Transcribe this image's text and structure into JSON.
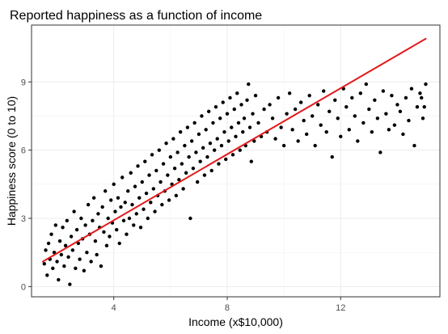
{
  "chart_data": {
    "type": "scatter",
    "title": "Reported happiness as a function of income",
    "xlabel": "Income (x$10,000)",
    "ylabel": "Happiness score (0 to 10)",
    "xlim": [
      1.1,
      15.5
    ],
    "ylim": [
      -0.45,
      11.5
    ],
    "x_ticks": [
      4,
      8,
      12
    ],
    "x_tick_labels": [
      "4",
      "8",
      "12"
    ],
    "y_ticks": [
      0,
      3,
      6,
      9
    ],
    "y_tick_labels": [
      "0",
      "3",
      "6",
      "9"
    ],
    "grid": true,
    "legend": "none",
    "series": [
      {
        "kind": "points",
        "color": "#000000",
        "points": [
          [
            1.55,
            1.0
          ],
          [
            1.6,
            1.6
          ],
          [
            1.65,
            0.5
          ],
          [
            1.7,
            1.9
          ],
          [
            1.75,
            1.2
          ],
          [
            1.8,
            2.3
          ],
          [
            1.85,
            0.8
          ],
          [
            1.9,
            1.5
          ],
          [
            1.95,
            2.7
          ],
          [
            2.0,
            1.1
          ],
          [
            2.05,
            0.3
          ],
          [
            2.1,
            2.0
          ],
          [
            2.15,
            1.4
          ],
          [
            2.2,
            2.6
          ],
          [
            2.25,
            0.9
          ],
          [
            2.3,
            1.8
          ],
          [
            2.35,
            2.9
          ],
          [
            2.4,
            1.3
          ],
          [
            2.45,
            0.1
          ],
          [
            2.5,
            2.2
          ],
          [
            2.55,
            1.6
          ],
          [
            2.6,
            3.3
          ],
          [
            2.65,
            0.8
          ],
          [
            2.7,
            2.5
          ],
          [
            2.75,
            1.9
          ],
          [
            2.8,
            1.2
          ],
          [
            2.85,
            3.0
          ],
          [
            2.9,
            2.1
          ],
          [
            2.95,
            0.7
          ],
          [
            3.0,
            2.7
          ],
          [
            3.05,
            1.5
          ],
          [
            3.1,
            3.6
          ],
          [
            3.15,
            2.3
          ],
          [
            3.2,
            1.1
          ],
          [
            3.25,
            2.9
          ],
          [
            3.3,
            3.9
          ],
          [
            3.35,
            2.0
          ],
          [
            3.4,
            1.4
          ],
          [
            3.45,
            3.2
          ],
          [
            3.5,
            2.6
          ],
          [
            3.55,
            0.9
          ],
          [
            3.6,
            3.5
          ],
          [
            3.65,
            2.4
          ],
          [
            3.7,
            4.2
          ],
          [
            3.75,
            1.8
          ],
          [
            3.8,
            3.0
          ],
          [
            3.85,
            2.2
          ],
          [
            3.9,
            3.8
          ],
          [
            3.95,
            2.8
          ],
          [
            4.0,
            4.5
          ],
          [
            4.05,
            3.3
          ],
          [
            4.1,
            2.5
          ],
          [
            4.15,
            3.9
          ],
          [
            4.2,
            1.9
          ],
          [
            4.25,
            3.5
          ],
          [
            4.3,
            4.8
          ],
          [
            4.35,
            2.9
          ],
          [
            4.4,
            3.7
          ],
          [
            4.45,
            2.3
          ],
          [
            4.5,
            4.2
          ],
          [
            4.55,
            3.0
          ],
          [
            4.6,
            5.0
          ],
          [
            4.65,
            3.6
          ],
          [
            4.7,
            2.7
          ],
          [
            4.75,
            4.4
          ],
          [
            4.8,
            3.2
          ],
          [
            4.85,
            5.3
          ],
          [
            4.9,
            3.9
          ],
          [
            4.95,
            2.6
          ],
          [
            5.0,
            4.6
          ],
          [
            5.05,
            3.4
          ],
          [
            5.1,
            5.5
          ],
          [
            5.15,
            4.1
          ],
          [
            5.2,
            3.0
          ],
          [
            5.25,
            4.9
          ],
          [
            5.3,
            3.7
          ],
          [
            5.35,
            5.8
          ],
          [
            5.4,
            4.3
          ],
          [
            5.45,
            3.3
          ],
          [
            5.5,
            5.1
          ],
          [
            5.55,
            4.0
          ],
          [
            5.6,
            6.0
          ],
          [
            5.65,
            4.6
          ],
          [
            5.7,
            3.6
          ],
          [
            5.75,
            5.4
          ],
          [
            5.8,
            4.2
          ],
          [
            5.85,
            6.3
          ],
          [
            5.9,
            4.9
          ],
          [
            5.95,
            3.8
          ],
          [
            6.0,
            5.7
          ],
          [
            6.05,
            4.5
          ],
          [
            6.1,
            6.5
          ],
          [
            6.15,
            5.2
          ],
          [
            6.2,
            4.0
          ],
          [
            6.25,
            5.9
          ],
          [
            6.3,
            4.7
          ],
          [
            6.35,
            6.8
          ],
          [
            6.4,
            5.4
          ],
          [
            6.45,
            4.3
          ],
          [
            6.5,
            6.2
          ],
          [
            6.55,
            5.0
          ],
          [
            6.6,
            7.0
          ],
          [
            6.65,
            5.7
          ],
          [
            6.7,
            3.0
          ],
          [
            6.75,
            6.4
          ],
          [
            6.8,
            5.2
          ],
          [
            6.85,
            7.2
          ],
          [
            6.9,
            5.9
          ],
          [
            6.95,
            4.6
          ],
          [
            7.0,
            6.7
          ],
          [
            7.05,
            5.5
          ],
          [
            7.1,
            7.5
          ],
          [
            7.15,
            6.1
          ],
          [
            7.2,
            4.9
          ],
          [
            7.25,
            6.9
          ],
          [
            7.3,
            5.7
          ],
          [
            7.35,
            7.7
          ],
          [
            7.4,
            6.3
          ],
          [
            7.45,
            5.1
          ],
          [
            7.5,
            7.2
          ],
          [
            7.55,
            6.0
          ],
          [
            7.6,
            7.9
          ],
          [
            7.65,
            6.5
          ],
          [
            7.7,
            5.4
          ],
          [
            7.75,
            7.4
          ],
          [
            7.8,
            6.2
          ],
          [
            7.85,
            8.1
          ],
          [
            7.9,
            6.8
          ],
          [
            7.95,
            5.6
          ],
          [
            8.0,
            7.6
          ],
          [
            8.05,
            6.4
          ],
          [
            8.1,
            8.3
          ],
          [
            8.15,
            7.0
          ],
          [
            8.2,
            5.8
          ],
          [
            8.25,
            7.8
          ],
          [
            8.3,
            6.6
          ],
          [
            8.35,
            8.5
          ],
          [
            8.4,
            7.2
          ],
          [
            8.45,
            6.0
          ],
          [
            8.5,
            8.0
          ],
          [
            8.55,
            6.8
          ],
          [
            8.6,
            7.4
          ],
          [
            8.65,
            6.2
          ],
          [
            8.7,
            8.2
          ],
          [
            8.75,
            8.9
          ],
          [
            8.8,
            7.0
          ],
          [
            8.85,
            5.5
          ],
          [
            8.9,
            7.6
          ],
          [
            8.95,
            6.4
          ],
          [
            9.0,
            8.4
          ],
          [
            9.1,
            7.2
          ],
          [
            9.2,
            6.6
          ],
          [
            9.3,
            7.8
          ],
          [
            9.4,
            6.8
          ],
          [
            9.5,
            8.0
          ],
          [
            9.6,
            7.4
          ],
          [
            9.7,
            6.5
          ],
          [
            9.8,
            8.3
          ],
          [
            9.9,
            7.0
          ],
          [
            10.0,
            6.2
          ],
          [
            10.1,
            7.6
          ],
          [
            10.2,
            8.5
          ],
          [
            10.3,
            6.9
          ],
          [
            10.4,
            7.8
          ],
          [
            10.5,
            6.4
          ],
          [
            10.6,
            8.1
          ],
          [
            10.7,
            7.3
          ],
          [
            10.8,
            6.7
          ],
          [
            10.9,
            8.4
          ],
          [
            11.0,
            7.5
          ],
          [
            11.1,
            6.2
          ],
          [
            11.2,
            8.0
          ],
          [
            11.3,
            7.1
          ],
          [
            11.4,
            8.6
          ],
          [
            11.5,
            6.8
          ],
          [
            11.6,
            7.7
          ],
          [
            11.7,
            5.7
          ],
          [
            11.8,
            8.2
          ],
          [
            11.9,
            7.4
          ],
          [
            12.0,
            6.6
          ],
          [
            12.1,
            8.7
          ],
          [
            12.2,
            7.9
          ],
          [
            12.3,
            6.9
          ],
          [
            12.4,
            8.3
          ],
          [
            12.5,
            7.5
          ],
          [
            12.6,
            6.4
          ],
          [
            12.7,
            8.5
          ],
          [
            12.8,
            7.2
          ],
          [
            12.9,
            8.9
          ],
          [
            13.0,
            7.8
          ],
          [
            13.1,
            6.8
          ],
          [
            13.2,
            8.2
          ],
          [
            13.3,
            7.4
          ],
          [
            13.4,
            5.9
          ],
          [
            13.5,
            8.6
          ],
          [
            13.6,
            7.6
          ],
          [
            13.7,
            6.9
          ],
          [
            13.8,
            8.4
          ],
          [
            13.9,
            7.1
          ],
          [
            14.0,
            8.0
          ],
          [
            14.1,
            7.7
          ],
          [
            14.2,
            6.7
          ],
          [
            14.3,
            8.3
          ],
          [
            14.4,
            7.3
          ],
          [
            14.5,
            8.7
          ],
          [
            14.6,
            6.2
          ],
          [
            14.7,
            7.9
          ],
          [
            14.8,
            8.5
          ],
          [
            14.9,
            7.4
          ],
          [
            15.0,
            8.9
          ],
          [
            14.95,
            7.9
          ],
          [
            14.85,
            8.3
          ]
        ]
      },
      {
        "kind": "trend-line",
        "color": "#e41a1c",
        "points": [
          [
            1.5,
            1.1
          ],
          [
            15.0,
            10.9
          ]
        ]
      }
    ]
  }
}
